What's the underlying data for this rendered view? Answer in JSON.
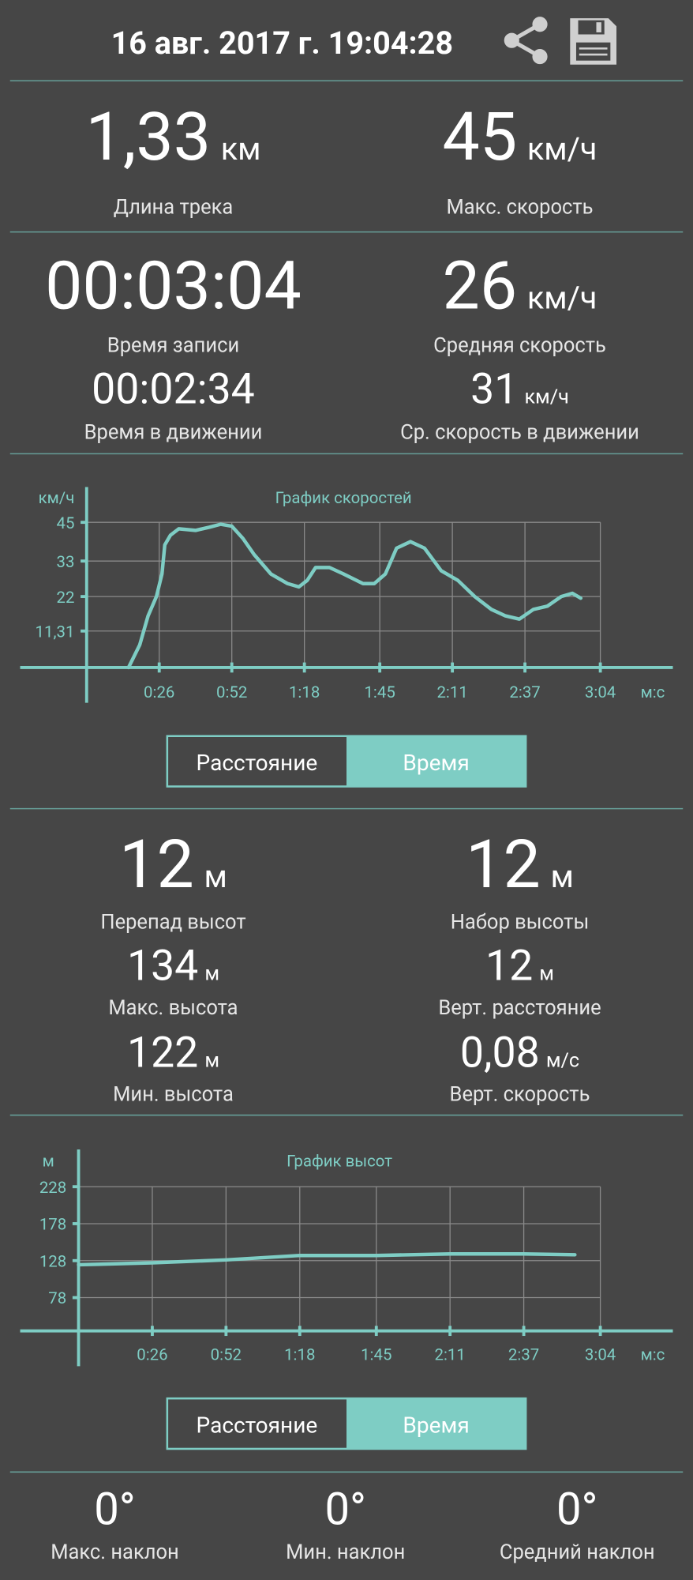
{
  "header": {
    "date": "16 авг. 2017 г. 19:04:28"
  },
  "track_stats": [
    {
      "value": "1,33",
      "unit": "км",
      "label": "Длина трека"
    },
    {
      "value": "45",
      "unit": "км/ч",
      "label": "Макс. скорость"
    },
    {
      "value": "00:03:04",
      "label": "Время записи"
    },
    {
      "value": "26",
      "unit": "км/ч",
      "label": "Средняя скорость"
    },
    {
      "value": "00:02:34",
      "label": "Время в движении"
    },
    {
      "value": "31",
      "unit": "км/ч",
      "label": "Ср. скорость в движении"
    }
  ],
  "altitude_stats": [
    {
      "value": "12",
      "unit": "м",
      "label": "Перепад высот"
    },
    {
      "value": "12",
      "unit": "м",
      "label": "Набор высоты"
    },
    {
      "value": "134",
      "unit": "м",
      "label": "Макс. высота"
    },
    {
      "value": "12",
      "unit": "м",
      "label": "Верт. расстояние"
    },
    {
      "value": "122",
      "unit": "м",
      "label": "Мин. высота"
    },
    {
      "value": "0,08",
      "unit": "м/с",
      "label": "Верт. скорость"
    }
  ],
  "toggles": [
    {
      "options": [
        "Расстояние",
        "Время"
      ],
      "selected": 1
    },
    {
      "options": [
        "Расстояние",
        "Время"
      ],
      "selected": 1
    }
  ],
  "slope_stats": [
    {
      "value": "0°",
      "label": "Макс. наклон"
    },
    {
      "value": "0°",
      "label": "Мин. наклон"
    },
    {
      "value": "0°",
      "label": "Средний наклон"
    }
  ],
  "chart_data": [
    {
      "type": "line",
      "title": "График скоростей",
      "y_label": "км/ч",
      "x_label": "м:с",
      "x": [
        15,
        19,
        22,
        25,
        27,
        28,
        30,
        33,
        39,
        44,
        48,
        52,
        56,
        60,
        66,
        72,
        76,
        79,
        82,
        87,
        92,
        99,
        103,
        107,
        111,
        116,
        121,
        127,
        133,
        139,
        145,
        150,
        155,
        160,
        165,
        170,
        174,
        177
      ],
      "values": [
        0,
        7,
        16,
        22,
        29,
        38,
        41,
        43,
        42.5,
        43.5,
        44.4,
        43.8,
        40,
        35,
        29,
        26,
        25,
        27,
        31,
        31,
        29,
        26,
        26,
        29,
        37,
        39,
        37,
        30,
        27,
        22,
        18,
        16,
        15,
        18,
        19,
        22,
        23,
        21.5
      ],
      "color": "#7ecdc4",
      "xlim": [
        0,
        184
      ],
      "ylim": [
        0,
        45
      ],
      "xticks": [
        {
          "value": 26,
          "label": "0:26"
        },
        {
          "value": 52,
          "label": "0:52"
        },
        {
          "value": 78,
          "label": "1:18"
        },
        {
          "value": 105,
          "label": "1:45"
        },
        {
          "value": 131,
          "label": "2:11"
        },
        {
          "value": 157,
          "label": "2:37"
        },
        {
          "value": 184,
          "label": "3:04"
        }
      ],
      "yticks": [
        {
          "value": 11.31,
          "label": "11,31"
        },
        22,
        33,
        45
      ],
      "grid": true
    },
    {
      "type": "line",
      "title": "График высот",
      "y_label": "м",
      "x_label": "м:с",
      "x": [
        0,
        26,
        52,
        78,
        105,
        131,
        157,
        175
      ],
      "values": [
        122.5,
        125,
        129,
        135,
        135,
        137,
        137,
        136
      ],
      "color": "#7ecdc4",
      "xlim": [
        0,
        184
      ],
      "ylim": [
        33,
        228
      ],
      "xticks": [
        {
          "value": 26,
          "label": "0:26"
        },
        {
          "value": 52,
          "label": "0:52"
        },
        {
          "value": 78,
          "label": "1:18"
        },
        {
          "value": 105,
          "label": "1:45"
        },
        {
          "value": 131,
          "label": "2:11"
        },
        {
          "value": 157,
          "label": "2:37"
        },
        {
          "value": 184,
          "label": "3:04"
        }
      ],
      "yticks": [
        78,
        128,
        178,
        228
      ],
      "grid": true
    }
  ]
}
